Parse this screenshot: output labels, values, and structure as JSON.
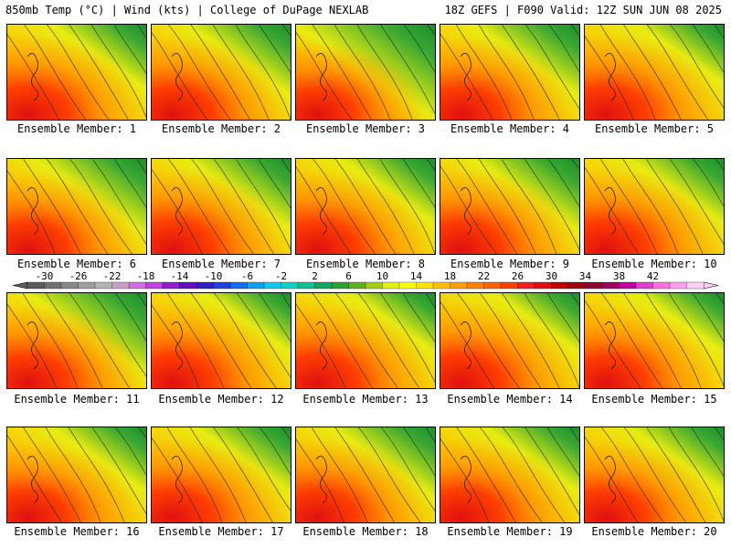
{
  "header": {
    "left": "850mb Temp (°C) | Wind (kts) | College of DuPage NEXLAB",
    "right": "18Z GEFS | F090 Valid: 12Z SUN JUN 08 2025"
  },
  "members": [
    {
      "label": "Ensemble Member: 1",
      "warm": 0.62,
      "green": 0.55
    },
    {
      "label": "Ensemble Member: 2",
      "warm": 0.6,
      "green": 0.6
    },
    {
      "label": "Ensemble Member: 3",
      "warm": 0.45,
      "green": 0.8
    },
    {
      "label": "Ensemble Member: 4",
      "warm": 0.58,
      "green": 0.62
    },
    {
      "label": "Ensemble Member: 5",
      "warm": 0.64,
      "green": 0.5
    },
    {
      "label": "Ensemble Member: 6",
      "warm": 0.55,
      "green": 0.65
    },
    {
      "label": "Ensemble Member: 7",
      "warm": 0.62,
      "green": 0.6
    },
    {
      "label": "Ensemble Member: 8",
      "warm": 0.6,
      "green": 0.55
    },
    {
      "label": "Ensemble Member: 9",
      "warm": 0.62,
      "green": 0.62
    },
    {
      "label": "Ensemble Member: 10",
      "warm": 0.65,
      "green": 0.55
    },
    {
      "label": "Ensemble Member: 11",
      "warm": 0.6,
      "green": 0.7
    },
    {
      "label": "Ensemble Member: 12",
      "warm": 0.66,
      "green": 0.5
    },
    {
      "label": "Ensemble Member: 13",
      "warm": 0.64,
      "green": 0.5
    },
    {
      "label": "Ensemble Member: 14",
      "warm": 0.66,
      "green": 0.5
    },
    {
      "label": "Ensemble Member: 15",
      "warm": 0.58,
      "green": 0.5
    },
    {
      "label": "Ensemble Member: 16",
      "warm": 0.56,
      "green": 0.55
    },
    {
      "label": "Ensemble Member: 17",
      "warm": 0.62,
      "green": 0.55
    },
    {
      "label": "Ensemble Member: 18",
      "warm": 0.6,
      "green": 0.6
    },
    {
      "label": "Ensemble Member: 19",
      "warm": 0.6,
      "green": 0.55
    },
    {
      "label": "Ensemble Member: 20",
      "warm": 0.58,
      "green": 0.55
    }
  ],
  "colorbar": {
    "ticks": [
      "-30",
      "-26",
      "-22",
      "-18",
      "-14",
      "-10",
      "-6",
      "-2",
      "2",
      "6",
      "10",
      "14",
      "18",
      "22",
      "26",
      "30",
      "34",
      "38",
      "42"
    ],
    "colors": [
      "#5a5a5a",
      "#707070",
      "#888888",
      "#9e9e9e",
      "#b4b4b4",
      "#c8a0c8",
      "#d070e0",
      "#c040e0",
      "#9020d0",
      "#6010c0",
      "#3020c0",
      "#2040e0",
      "#1070f0",
      "#10a0f0",
      "#10c8f0",
      "#10d0c0",
      "#10c090",
      "#10a860",
      "#30a030",
      "#60b020",
      "#a0d010",
      "#e0f010",
      "#ffff00",
      "#ffe000",
      "#ffc000",
      "#ffa000",
      "#ff8000",
      "#ff6000",
      "#ff4000",
      "#f02020",
      "#e01010",
      "#c00000",
      "#a00010",
      "#900030",
      "#a00060",
      "#c000a0",
      "#e040d0",
      "#ff70e0",
      "#ffa0f0",
      "#ffd0f8"
    ]
  }
}
